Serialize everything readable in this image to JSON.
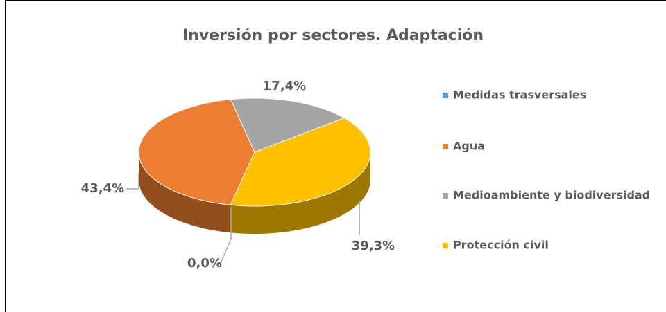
{
  "chart_data": {
    "type": "pie",
    "title": "Inversión por sectores. Adaptación",
    "categories": [
      "Medidas trasversales",
      "Agua",
      "Medioambiente y biodiversidad",
      "Protección civil"
    ],
    "values": [
      0.0,
      43.4,
      17.4,
      39.3
    ],
    "value_labels": [
      "0,0%",
      "43,4%",
      "17,4%",
      "39,3%"
    ],
    "colors": [
      "#5b9bd5",
      "#ed7d31",
      "#a5a5a5",
      "#ffc000"
    ],
    "legend": "right"
  }
}
